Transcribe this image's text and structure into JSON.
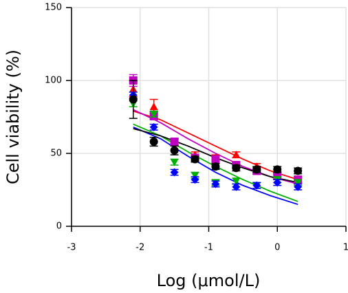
{
  "chart_data": {
    "type": "scatter",
    "xlabel": "Log (μmol/L)",
    "ylabel": "Cell viability (%)",
    "xlim": [
      -3,
      1
    ],
    "xticks": [
      -3,
      -2,
      -1,
      0,
      1
    ],
    "ylim": [
      0,
      150
    ],
    "yticks": [
      0,
      50,
      100,
      150
    ],
    "grid": true,
    "x": [
      -2.1,
      -1.8,
      -1.5,
      -1.2,
      -0.9,
      -0.6,
      -0.3,
      0,
      0.3
    ],
    "fit_x": [
      -2.1,
      -1.7,
      -1.3,
      -0.9,
      -0.5,
      -0.1,
      0.3
    ],
    "series": [
      {
        "color": "#ff0000",
        "marker": "triangle-up",
        "values": [
          94,
          82,
          58,
          49,
          47,
          49,
          41,
          34,
          31
        ],
        "errors": [
          5,
          5,
          2,
          2,
          2,
          2,
          2,
          2,
          3
        ],
        "fit": [
          79,
          73,
          64,
          55,
          46,
          38,
          32
        ]
      },
      {
        "color": "#c000c0",
        "marker": "square",
        "values": [
          100,
          76,
          58,
          47,
          46,
          42,
          38,
          35,
          32
        ],
        "errors": [
          4,
          3,
          2,
          2,
          2,
          2,
          2,
          2,
          2
        ],
        "fit": [
          80,
          71,
          60,
          50,
          41,
          34,
          29
        ]
      },
      {
        "color": "#00b000",
        "marker": "triangle-down",
        "values": [
          84,
          77,
          44,
          35,
          30,
          31,
          28,
          32,
          30
        ],
        "errors": [
          2,
          2,
          2,
          2,
          2,
          2,
          2,
          2,
          2
        ],
        "fit": [
          70,
          62,
          51,
          41,
          32,
          24,
          17
        ]
      },
      {
        "color": "#0000ff",
        "marker": "diamond",
        "values": [
          90,
          68,
          37,
          32,
          29,
          27,
          28,
          30,
          27
        ],
        "errors": [
          2,
          2,
          2,
          2,
          2,
          2,
          2,
          2,
          2
        ],
        "fit": [
          68,
          60,
          48,
          37,
          28,
          21,
          15
        ]
      },
      {
        "color": "#000000",
        "marker": "circle",
        "values": [
          87,
          58,
          52,
          46,
          41,
          40,
          39,
          39,
          38
        ],
        "errors": [
          13,
          3,
          3,
          2,
          2,
          2,
          2,
          2,
          2
        ],
        "fit": [
          67,
          62,
          55,
          47,
          40,
          34,
          30
        ]
      }
    ]
  }
}
